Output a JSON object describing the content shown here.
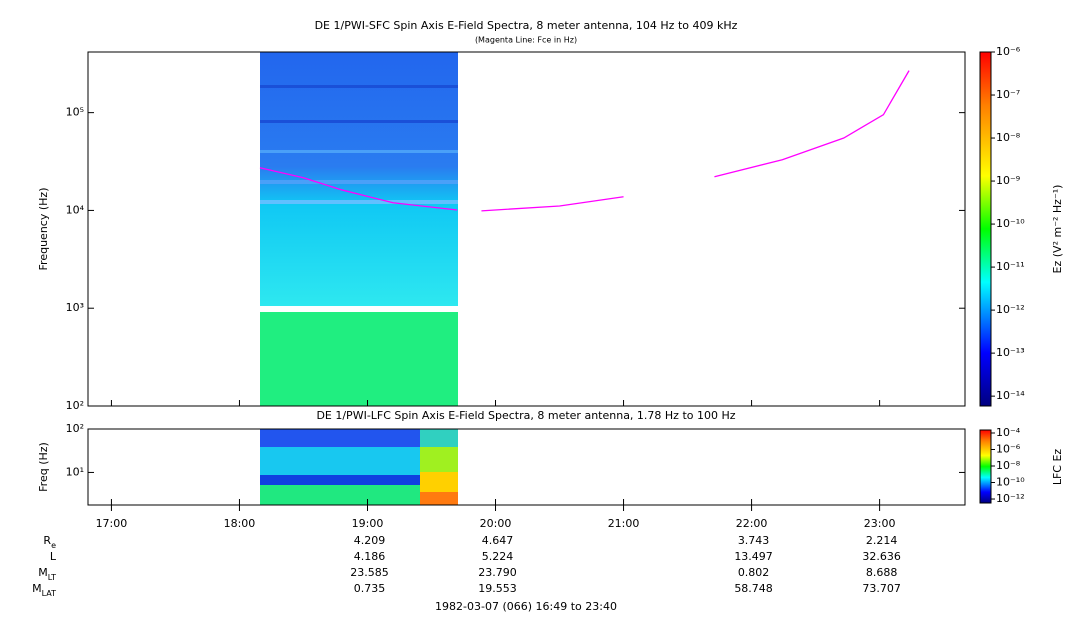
{
  "chart_data": [
    {
      "type": "spectrogram",
      "title": "DE 1/PWI-SFC  Spin Axis E-Field Spectra, 8 meter antenna, 104 Hz to 409 kHz",
      "subtitle": "(Magenta Line: Fce in Hz)",
      "y_label": "Frequency (Hz)",
      "log_scale": true,
      "ylim": [
        100,
        417000
      ],
      "yticks": [
        {
          "value": 100,
          "label": "10²"
        },
        {
          "value": 1000,
          "label": "10³"
        },
        {
          "value": 10000,
          "label": "10⁴"
        },
        {
          "value": 100000,
          "label": "10⁵"
        }
      ],
      "series": [
        {
          "color": "#ff00ff",
          "x": [
            18.16,
            18.5,
            18.8,
            19.2,
            19.7,
            19.8,
            19.89,
            20.5,
            21.0,
            21.3,
            21.71,
            22.24,
            22.72,
            23.03,
            23.23
          ],
          "values": [
            27300,
            21600,
            16200,
            11970,
            10100,
            null,
            9900,
            11100,
            13800,
            null,
            22100,
            33000,
            55000,
            95400,
            269000
          ]
        }
      ],
      "colorbar": {
        "label": "Ez (V² m⁻² Hz⁻¹)",
        "log_scale": true,
        "clim": [
          5.9e-15,
          1e-06
        ],
        "ticks": [
          {
            "value": 1e-14,
            "label": "10⁻¹⁴"
          },
          {
            "value": 1e-13,
            "label": "10⁻¹³"
          },
          {
            "value": 1e-12,
            "label": "10⁻¹²"
          },
          {
            "value": 1e-11,
            "label": "10⁻¹¹"
          },
          {
            "value": 1e-10,
            "label": "10⁻¹⁰"
          },
          {
            "value": 1e-09,
            "label": "10⁻⁹"
          },
          {
            "value": 1e-08,
            "label": "10⁻⁸"
          },
          {
            "value": 1e-07,
            "label": "10⁻⁷"
          },
          {
            "value": 1e-06,
            "label": "10⁻⁶"
          }
        ]
      }
    },
    {
      "type": "spectrogram",
      "title": "DE 1/PWI-LFC  Spin Axis E-Field Spectra, 8 meter antenna, 1.78 Hz to 100 Hz",
      "y_label": "Freq (Hz)",
      "log_scale": true,
      "ylim": [
        1.78,
        100
      ],
      "yticks": [
        {
          "value": 10,
          "label": "10¹"
        },
        {
          "value": 100,
          "label": "10²"
        }
      ],
      "colorbar": {
        "label": "LFC Ez",
        "log_scale": true,
        "clim": [
          3.3e-13,
          0.00023
        ],
        "ticks": [
          {
            "value": 1e-12,
            "label": "10⁻¹²"
          },
          {
            "value": 1e-10,
            "label": "10⁻¹⁰"
          },
          {
            "value": 1e-08,
            "label": "10⁻⁸"
          },
          {
            "value": 1e-06,
            "label": "10⁻⁶"
          },
          {
            "value": 0.0001,
            "label": "10⁻⁴"
          }
        ]
      }
    }
  ],
  "x_axis": {
    "xlim": [
      16.817,
      23.667
    ],
    "xticks": [
      {
        "value": 17,
        "label": "17:00"
      },
      {
        "value": 18,
        "label": "18:00"
      },
      {
        "value": 19,
        "label": "19:00"
      },
      {
        "value": 20,
        "label": "20:00"
      },
      {
        "value": 21,
        "label": "21:00"
      },
      {
        "value": 22,
        "label": "22:00"
      },
      {
        "value": 23,
        "label": "23:00"
      }
    ]
  },
  "ephemeris": {
    "times": [
      19,
      20,
      22,
      23
    ],
    "rows": [
      {
        "label": "R",
        "sub": "e",
        "values": [
          "4.209",
          "4.647",
          "3.743",
          "2.214"
        ]
      },
      {
        "label": "L",
        "values": [
          "4.186",
          "5.224",
          "13.497",
          "32.636"
        ]
      },
      {
        "label": "M",
        "sub": "LT",
        "values": [
          "23.585",
          "23.790",
          "0.802",
          "8.688"
        ]
      },
      {
        "label": "M",
        "sub": "LAT",
        "values": [
          "0.735",
          "19.553",
          "58.748",
          "73.707"
        ]
      }
    ]
  },
  "footer": "1982-03-07 (066) 16:49 to 23:40"
}
